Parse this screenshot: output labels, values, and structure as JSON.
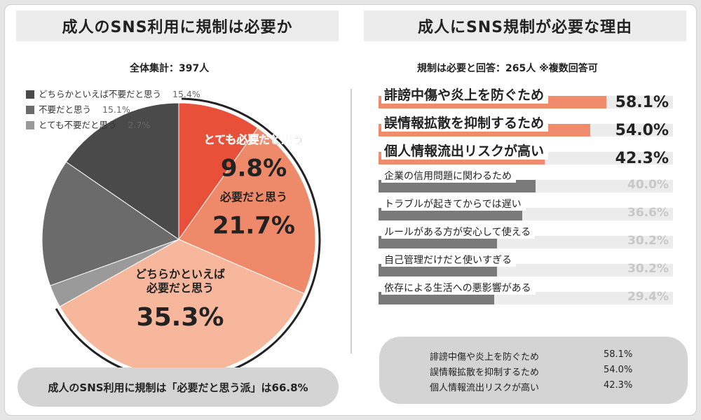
{
  "left": {
    "title": "成人のSNS利用に規制は必要か",
    "subtitle": "全体集計：397人",
    "legend": [
      {
        "label": "どちらかといえば不要だと思う",
        "value": "15.4%",
        "color": "#4a4a4a"
      },
      {
        "label": "不要だと思う",
        "value": "15.1%",
        "color": "#6b6b6b"
      },
      {
        "label": "とても不要だと思う",
        "value": "2.7%",
        "color": "#9a9a9a"
      }
    ],
    "slice_labels": [
      {
        "label": "とても必要だと思う",
        "value": "9.8%"
      },
      {
        "label": "必要だと思う",
        "value": "21.7%"
      },
      {
        "label": "どちらかといえば",
        "label2": "必要だと思う",
        "value": "35.3%"
      }
    ],
    "summary": "成人のSNS利用に規制は「必要だと思う派」は66.8%"
  },
  "right": {
    "title": "成人にSNS規制が必要な理由",
    "subtitle": "規制は必要と回答：265人 ※複数回答可",
    "bar_labels": [
      "誹謗中傷や炎上を防ぐため",
      "誤情報拡散を抑制するため",
      "個人情報流出リスクが高い",
      "企業の信用問題に関わるため",
      "トラブルが起きてからでは遅い",
      "ルールがある方が安心して使える",
      "自己管理だけだと使いすぎる",
      "依存による生活への悪影響がある"
    ],
    "bar_values": [
      "58.1%",
      "54.0%",
      "42.3%",
      "40.0%",
      "36.6%",
      "30.2%",
      "30.2%",
      "29.4%"
    ],
    "summary": [
      {
        "label": "誹謗中傷や炎上を防ぐため",
        "value": "58.1%"
      },
      {
        "label": "誤情報拡散を抑制するため",
        "value": "54.0%"
      },
      {
        "label": "個人情報流出リスクが高い",
        "value": "42.3%"
      }
    ]
  },
  "colors": {
    "accent_red": "#e8503a",
    "salmon": "#ee8a6a",
    "light_salmon": "#f6b79d",
    "highlight_bar": "#f08c6e",
    "grey_bar": "#7a7a7a",
    "dark_grey": "#4a4a4a",
    "mid_grey": "#6b6b6b",
    "light_grey": "#9a9a9a"
  },
  "chart_data": [
    {
      "type": "pie",
      "title": "成人のSNS利用に規制は必要か",
      "categories": [
        "とても必要だと思う",
        "必要だと思う",
        "どちらかといえば必要だと思う",
        "とても不要だと思う",
        "不要だと思う",
        "どちらかといえば不要だと思う"
      ],
      "values": [
        9.8,
        21.7,
        35.3,
        2.7,
        15.1,
        15.4
      ],
      "colors": [
        "#e8503a",
        "#ee8a6a",
        "#f6b79d",
        "#9a9a9a",
        "#6b6b6b",
        "#4a4a4a"
      ],
      "legend_position": "top-left"
    },
    {
      "type": "bar",
      "orientation": "horizontal",
      "title": "成人にSNS規制が必要な理由",
      "categories": [
        "誹謗中傷や炎上を防ぐため",
        "誤情報拡散を抑制するため",
        "個人情報流出リスクが高い",
        "企業の信用問題に関わるため",
        "トラブルが起きてからでは遅い",
        "ルールがある方が安心して使える",
        "自己管理だけだと使いすぎる",
        "依存による生活への悪影響がある"
      ],
      "values": [
        58.1,
        54.0,
        42.3,
        40.0,
        36.6,
        30.2,
        30.2,
        29.4
      ],
      "highlighted": 3,
      "xlim": [
        0,
        75
      ]
    }
  ]
}
